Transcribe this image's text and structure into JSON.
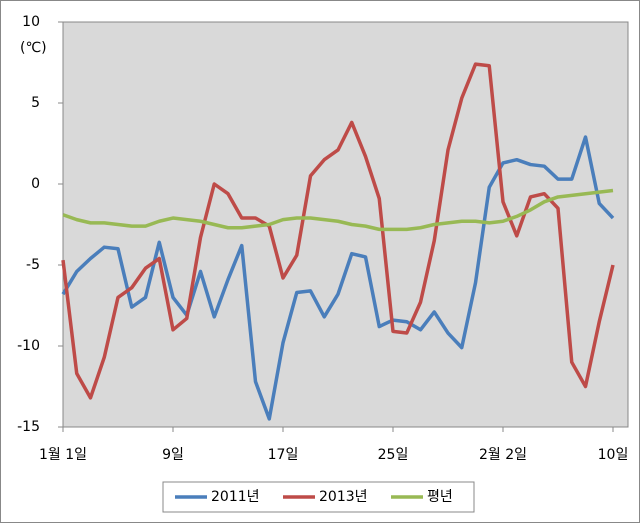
{
  "chart_data": {
    "type": "line",
    "y_unit": "(℃)",
    "categories": [
      "1월 1일",
      null,
      null,
      null,
      null,
      null,
      null,
      null,
      "9일",
      null,
      null,
      null,
      null,
      null,
      null,
      null,
      "17일",
      null,
      null,
      null,
      null,
      null,
      null,
      null,
      "25일",
      null,
      null,
      null,
      null,
      null,
      null,
      null,
      "2월 2일",
      null,
      null,
      null,
      null,
      null,
      null,
      null,
      "10일"
    ],
    "series": [
      {
        "name": "2011년",
        "color": "#4a7ebb",
        "values": [
          -6.8,
          -5.4,
          -4.6,
          -3.9,
          -4.0,
          -7.6,
          -7.0,
          -3.6,
          -7.0,
          -8.1,
          -5.4,
          -8.2,
          -5.9,
          -3.8,
          -12.2,
          -14.5,
          -9.8,
          -6.7,
          -6.6,
          -8.2,
          -6.8,
          -4.3,
          -4.5,
          -8.8,
          -8.4,
          -8.5,
          -9.0,
          -7.9,
          -9.2,
          -10.1,
          -6.1,
          -0.2,
          1.3,
          1.5,
          1.2,
          1.1,
          0.3,
          0.3,
          2.9,
          -1.2,
          -2.1
        ]
      },
      {
        "name": "2013년",
        "color": "#be4b48",
        "values": [
          -4.7,
          -11.7,
          -13.2,
          -10.7,
          -7.0,
          -6.4,
          -5.2,
          -4.6,
          -9.0,
          -8.3,
          -3.3,
          0,
          -0.6,
          -2.1,
          -2.1,
          -2.6,
          -5.8,
          -4.4,
          0.5,
          1.5,
          2.1,
          3.8,
          1.7,
          -0.9,
          -9.1,
          -9.2,
          -7.3,
          -3.5,
          2.1,
          5.3,
          7.4,
          7.3,
          -1.1,
          -3.2,
          -0.8,
          -0.6,
          -1.5,
          -11.0,
          -12.5,
          -8.5,
          -5.0
        ]
      },
      {
        "name": "평년",
        "color": "#98b954",
        "values": [
          -1.9,
          -2.2,
          -2.4,
          -2.4,
          -2.5,
          -2.6,
          -2.6,
          -2.3,
          -2.1,
          -2.2,
          -2.3,
          -2.5,
          -2.7,
          -2.7,
          -2.6,
          -2.5,
          -2.2,
          -2.1,
          -2.1,
          -2.2,
          -2.3,
          -2.5,
          -2.6,
          -2.8,
          -2.8,
          -2.8,
          -2.7,
          -2.5,
          -2.4,
          -2.3,
          -2.3,
          -2.4,
          -2.3,
          -2.0,
          -1.6,
          -1.1,
          -0.8,
          -0.7,
          -0.6,
          -0.5,
          -0.4
        ]
      }
    ],
    "ylim": [
      -15,
      10
    ],
    "yticks": [
      10,
      5,
      0,
      -5,
      -10,
      -15
    ],
    "grid": false,
    "legend": "bottom"
  }
}
